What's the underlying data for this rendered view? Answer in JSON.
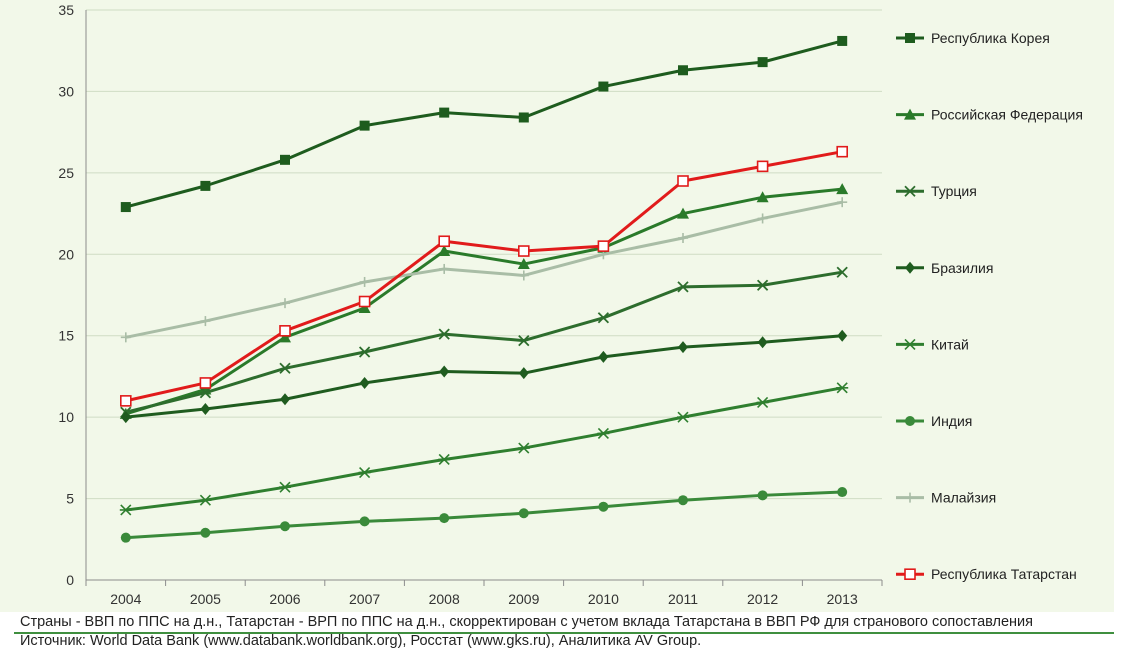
{
  "chart_data": {
    "type": "line",
    "title": "",
    "xlabel": "",
    "ylabel": "",
    "x": [
      "2004",
      "2005",
      "2006",
      "2007",
      "2008",
      "2009",
      "2010",
      "2011",
      "2012",
      "2013"
    ],
    "ylim": [
      0,
      35
    ],
    "yticks": [
      0,
      5,
      10,
      15,
      20,
      25,
      30,
      35
    ],
    "grid": true,
    "legend_position": "right",
    "series": [
      {
        "name": "Республика Корея",
        "marker": "square",
        "color": "#1e5c1e",
        "values": [
          22.9,
          24.2,
          25.8,
          27.9,
          28.7,
          28.4,
          30.3,
          31.3,
          31.8,
          33.1
        ]
      },
      {
        "name": "Российская Федерация",
        "marker": "triangle",
        "color": "#2a7a2a",
        "values": [
          10.2,
          11.7,
          14.9,
          16.7,
          20.2,
          19.4,
          20.4,
          22.5,
          23.5,
          24.0
        ]
      },
      {
        "name": "Турция",
        "marker": "x",
        "color": "#2d6d2d",
        "values": [
          10.3,
          11.5,
          13.0,
          14.0,
          15.1,
          14.7,
          16.1,
          18.0,
          18.1,
          18.9
        ]
      },
      {
        "name": "Бразилия",
        "marker": "diamond",
        "color": "#1f5c1f",
        "values": [
          10.0,
          10.5,
          11.1,
          12.1,
          12.8,
          12.7,
          13.7,
          14.3,
          14.6,
          15.0
        ]
      },
      {
        "name": "Китай",
        "marker": "asterisk",
        "color": "#2f7f2f",
        "values": [
          4.3,
          4.9,
          5.7,
          6.6,
          7.4,
          8.1,
          9.0,
          10.0,
          10.9,
          11.8
        ]
      },
      {
        "name": "Индия",
        "marker": "circle",
        "color": "#3a8a3a",
        "values": [
          2.6,
          2.9,
          3.3,
          3.6,
          3.8,
          4.1,
          4.5,
          4.9,
          5.2,
          5.4
        ]
      },
      {
        "name": "Малайзия",
        "marker": "plus",
        "color": "#a9bda6",
        "values": [
          14.9,
          15.9,
          17.0,
          18.3,
          19.1,
          18.7,
          20.0,
          21.0,
          22.2,
          23.2
        ]
      },
      {
        "name": "Республика Татарстан",
        "marker": "open-square",
        "color": "#e11b1b",
        "values": [
          11.0,
          12.1,
          15.3,
          17.1,
          20.8,
          20.2,
          20.5,
          24.5,
          25.4,
          26.3
        ]
      }
    ]
  },
  "footer": {
    "note": "Страны - ВВП по ППС на д.н., Татарстан - ВРП по ППС на д.н., скорректирован с учетом вклада Татарстана в ВВП РФ для странового сопоставления",
    "source": "Источник: World Data Bank (www.databank.worldbank.org), Росстат (www.gks.ru), Аналитика AV Group."
  }
}
